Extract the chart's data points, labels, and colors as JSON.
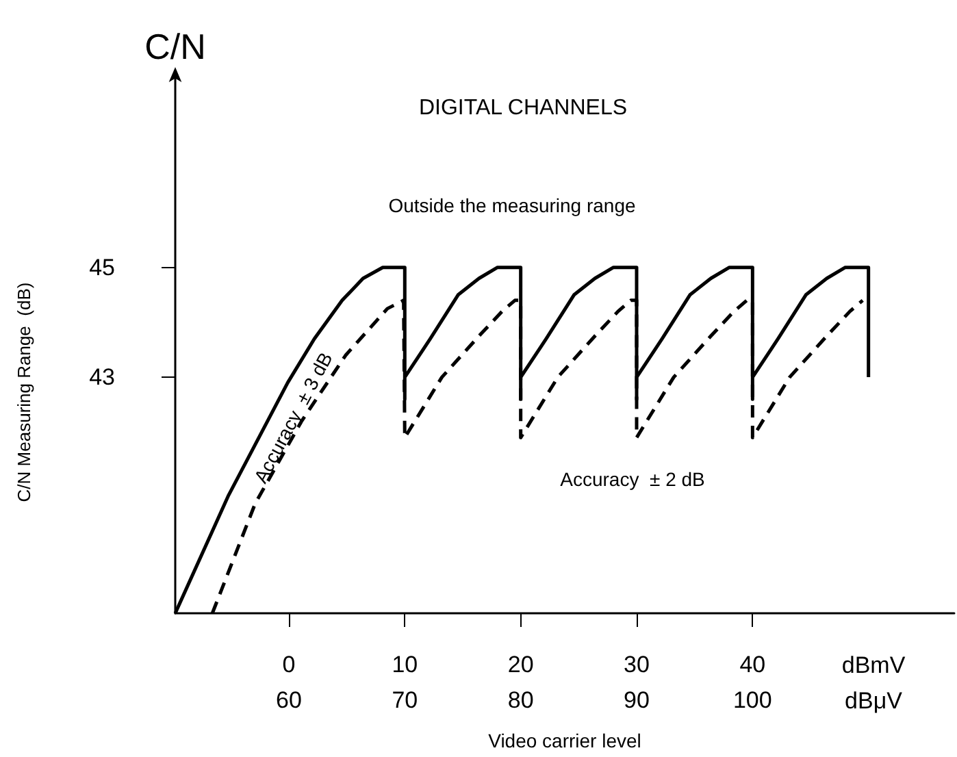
{
  "chart_data": {
    "type": "line",
    "title": "DIGITAL CHANNELS",
    "xlabel": "Video carrier level",
    "ylabel": "C/N Measuring Range  (dB)",
    "annotations": [
      "C/N",
      "Outside the measuring range",
      "Accuracy  ± 3 dB",
      "Accuracy  ± 2 dB",
      "dBmV",
      "dBμV"
    ],
    "xlim": [
      -9.8,
      57.4
    ],
    "xticks": [
      0,
      10,
      20,
      30,
      40
    ],
    "x2lim": [
      50.2,
      117.4
    ],
    "x2ticks": [
      60,
      70,
      80,
      90,
      100
    ],
    "ylim": [
      38.7,
      48.5
    ],
    "yticks": [
      43,
      45
    ],
    "grid": false,
    "marker": "none",
    "series": [
      {
        "color": "#000000",
        "line_style": "solid",
        "x": [
          -9.8,
          -5.2,
          -0.1,
          2.2,
          4.6,
          6.4,
          8.1,
          10,
          10,
          10,
          12.2,
          14.6,
          16.4,
          18,
          20,
          20,
          20,
          22.2,
          24.6,
          26.4,
          28,
          30,
          30,
          30,
          32.2,
          34.6,
          36.4,
          38,
          40,
          40,
          40,
          42.2,
          44.6,
          46.4,
          48,
          50,
          50
        ],
        "values": [
          38.7,
          40.85,
          42.9,
          43.7,
          44.4,
          44.8,
          45,
          45,
          42.6,
          43,
          43.7,
          44.5,
          44.8,
          45,
          45,
          42.6,
          43,
          43.7,
          44.5,
          44.8,
          45,
          45,
          42.6,
          43,
          43.7,
          44.5,
          44.8,
          45,
          45,
          42.6,
          43,
          43.7,
          44.5,
          44.8,
          45,
          45,
          43
        ]
      },
      {
        "color": "#000000",
        "line_style": "dashed",
        "x": [
          -6.6,
          -2.9,
          1.1,
          4.9,
          8.5,
          9.9,
          10,
          13.2,
          16.4,
          18.4,
          19.5,
          20,
          20,
          23.2,
          26.4,
          28.4,
          29.5,
          30,
          30,
          33.2,
          36.4,
          38.4,
          39.5,
          40,
          40,
          43.2,
          46.4,
          48.4,
          49.5
        ],
        "values": [
          38.7,
          40.7,
          42.2,
          43.4,
          44.25,
          44.4,
          41.9,
          43,
          43.75,
          44.2,
          44.4,
          44.4,
          41.9,
          43,
          43.75,
          44.2,
          44.4,
          44.4,
          41.9,
          43,
          43.75,
          44.2,
          44.4,
          44.4,
          41.9,
          43,
          43.75,
          44.2,
          44.4
        ]
      }
    ]
  }
}
